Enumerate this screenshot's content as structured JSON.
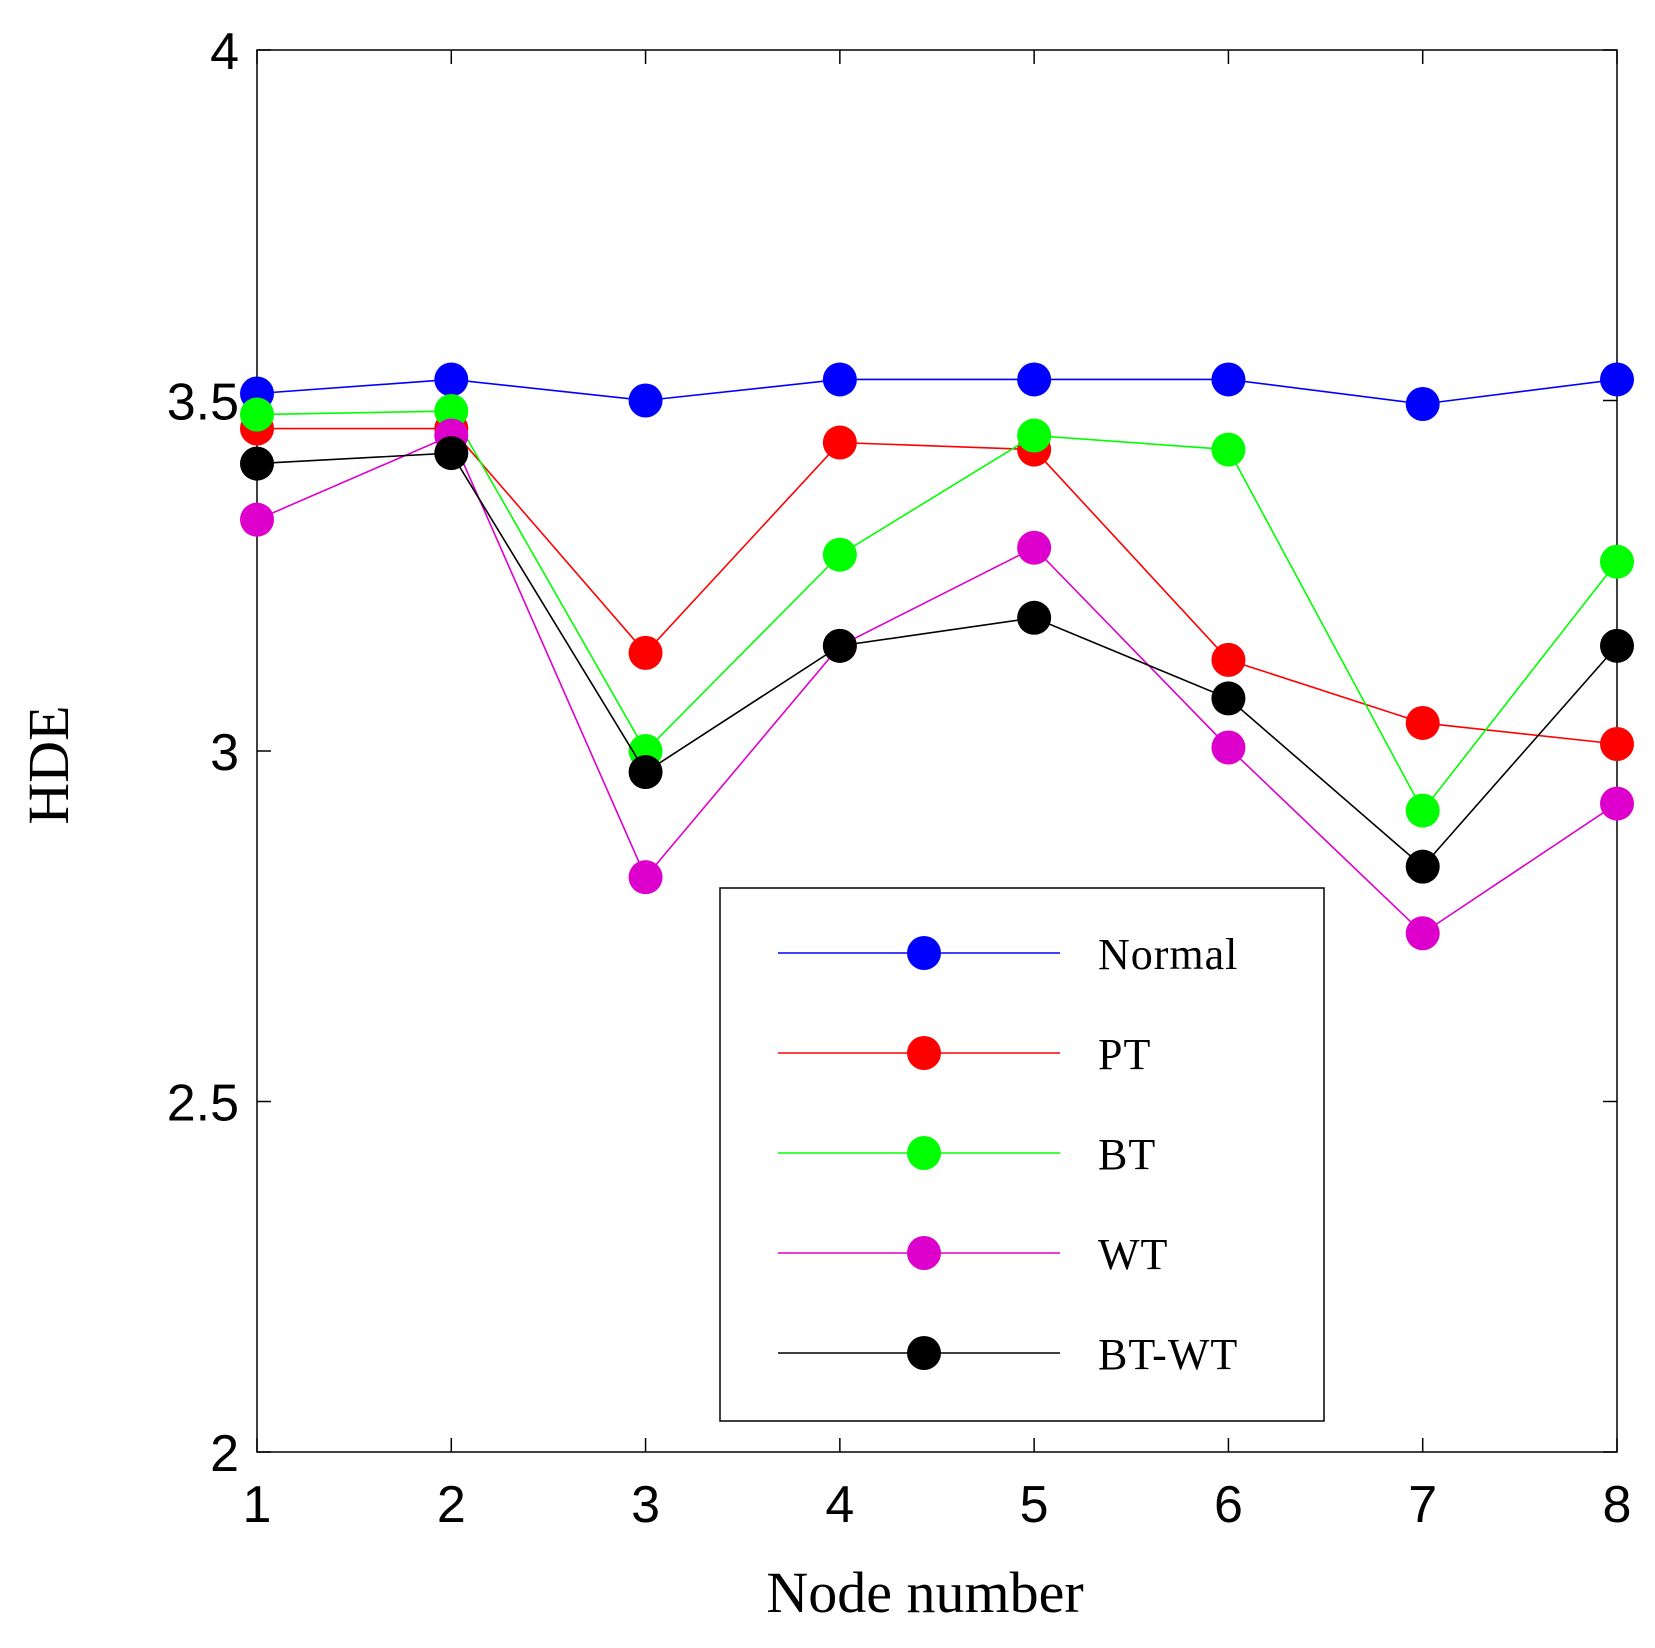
{
  "chart_data": {
    "type": "line",
    "title": "",
    "xlabel": "Node number",
    "ylabel": "HDE",
    "x": [
      1,
      2,
      3,
      4,
      5,
      6,
      7,
      8
    ],
    "xlim": [
      1,
      8
    ],
    "ylim": [
      2,
      4
    ],
    "xticks": [
      "1",
      "2",
      "3",
      "4",
      "5",
      "6",
      "7",
      "8"
    ],
    "yticks": [
      {
        "value": 2,
        "label": "2"
      },
      {
        "value": 2.5,
        "label": "2.5"
      },
      {
        "value": 3,
        "label": "3"
      },
      {
        "value": 3.5,
        "label": "3.5"
      },
      {
        "value": 4,
        "label": "4"
      }
    ],
    "grid": false,
    "legend_position": "lower-right",
    "series": [
      {
        "name": "Normal",
        "color": "#0000ff",
        "values": [
          3.51,
          3.53,
          3.5,
          3.53,
          3.53,
          3.53,
          3.495,
          3.53
        ]
      },
      {
        "name": "PT",
        "color": "#ff0000",
        "values": [
          3.46,
          3.46,
          3.14,
          3.44,
          3.43,
          3.13,
          3.04,
          3.01
        ]
      },
      {
        "name": "BT",
        "color": "#00ff00",
        "values": [
          3.48,
          3.485,
          3.0,
          3.28,
          3.45,
          3.43,
          2.915,
          3.27
        ]
      },
      {
        "name": "WT",
        "color": "#dd00cc",
        "values": [
          3.33,
          3.45,
          2.82,
          3.15,
          3.29,
          3.005,
          2.74,
          2.925
        ]
      },
      {
        "name": "BT-WT",
        "color": "#000000",
        "values": [
          3.41,
          3.425,
          2.97,
          3.15,
          3.19,
          3.075,
          2.835,
          3.15
        ]
      }
    ]
  }
}
